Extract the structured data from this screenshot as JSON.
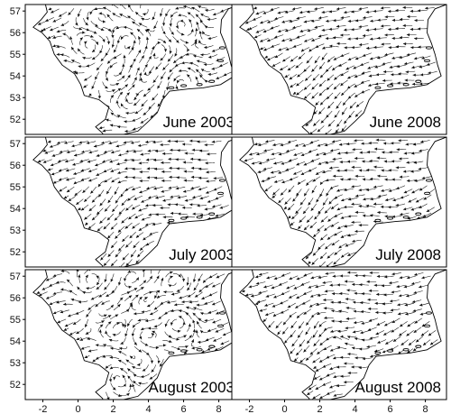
{
  "figure": {
    "panels": [
      {
        "label": "June 2003",
        "regime": "eddy"
      },
      {
        "label": "June 2008",
        "regime": "flow"
      },
      {
        "label": "July 2003",
        "regime": "flow"
      },
      {
        "label": "July 2008",
        "regime": "flow"
      },
      {
        "label": "August 2003",
        "regime": "eddy"
      },
      {
        "label": "August 2008",
        "regime": "flow"
      }
    ],
    "x_ticks": [
      "-2",
      "0",
      "2",
      "4",
      "6",
      "8"
    ],
    "y_ticks": [
      "52",
      "53",
      "54",
      "55",
      "56",
      "57"
    ],
    "colors": {
      "lines": "#111111",
      "background": "#ffffff",
      "frame": "#000000"
    }
  }
}
